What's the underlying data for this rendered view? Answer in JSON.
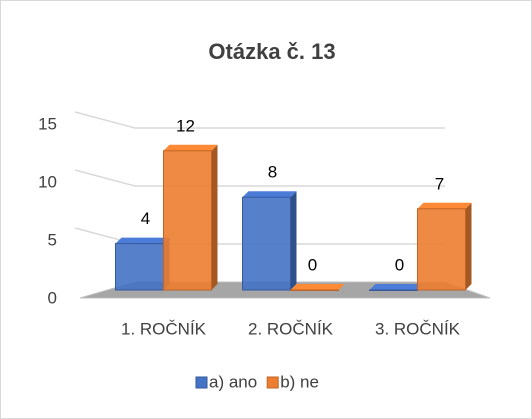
{
  "chart_data": {
    "type": "bar3d",
    "title": "Otázka č. 13",
    "categories": [
      "1. ROČNÍK",
      "2. ROČNÍK",
      "3. ROČNÍK"
    ],
    "series": [
      {
        "name": "a) ano",
        "color": "#4472c4",
        "values": [
          4,
          8,
          0
        ]
      },
      {
        "name": "b) ne",
        "color": "#ed7d31",
        "values": [
          12,
          0,
          7
        ]
      }
    ],
    "ylim": [
      0,
      15
    ],
    "yticks": [
      0,
      5,
      10,
      15
    ],
    "grid": true,
    "data_labels": true,
    "legend": "bottom"
  }
}
